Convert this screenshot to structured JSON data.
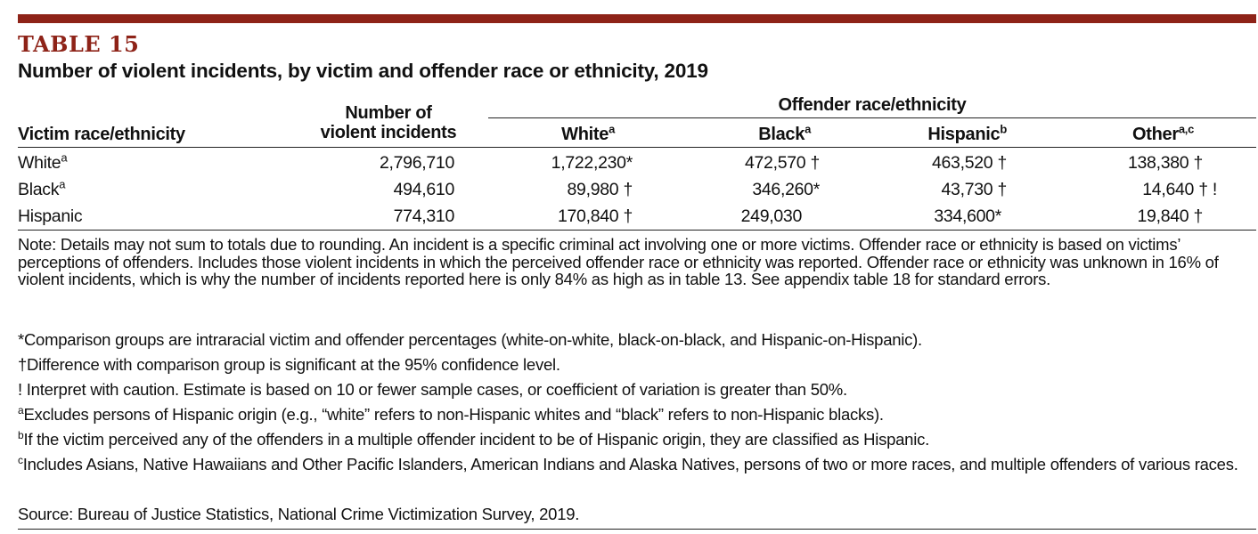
{
  "table_label": "TABLE 15",
  "title": "Number of violent incidents, by victim and offender race or ethnicity, 2019",
  "header": {
    "victim_col": "Victim race/ethnicity",
    "incidents_col_line1": "Number of",
    "incidents_col_line2": "violent incidents",
    "offender_group": "Offender race/ethnicity",
    "white": "White",
    "white_sup": "a",
    "black": "Black",
    "black_sup": "a",
    "hispanic": "Hispanic",
    "hispanic_sup": "b",
    "other": "Other",
    "other_sup": "a,c"
  },
  "rows": [
    {
      "label": "White",
      "label_sup": "a",
      "incidents": "2,796,710",
      "white": "1,722,230*",
      "black": "472,570 †",
      "hispanic": "463,520 †",
      "other": "138,380 †"
    },
    {
      "label": "Black",
      "label_sup": "a",
      "incidents": "494,610",
      "white": "89,980 †",
      "black": "346,260*",
      "hispanic": "43,730 †",
      "other": "14,640 † !"
    },
    {
      "label": "Hispanic",
      "label_sup": "",
      "incidents": "774,310",
      "white": "170,840 †",
      "black": "249,030",
      "hispanic": "334,600*",
      "other": "19,840 †"
    }
  ],
  "notes": {
    "main": "Note: Details may not sum to totals due to rounding. An incident is a specific criminal act involving one or more victims. Offender race or ethnicity is based on victims’ perceptions of offenders. Includes those violent incidents in which the perceived offender race or ethnicity was reported. Offender race or ethnicity was unknown in 16% of violent incidents, which is why the number of incidents reported here is only 84% as high as in table 13. See appendix table 18 for standard errors.",
    "asterisk": "*Comparison groups are intraracial victim and offender percentages (white-on-white, black-on-black, and Hispanic-on-Hispanic).",
    "dagger": "†Difference with comparison group is significant at the 95% confidence level.",
    "caution": "! Interpret with caution. Estimate is based on 10 or fewer sample cases, or coefficient of variation is greater than 50%.",
    "a_sup": "a",
    "a": "Excludes persons of Hispanic origin (e.g., “white” refers to non-Hispanic whites and “black” refers to non-Hispanic blacks).",
    "b_sup": "b",
    "b": "If the victim perceived any of the offenders in a multiple offender incident to be of Hispanic origin, they are classified as Hispanic.",
    "c_sup": "c",
    "c": "Includes Asians, Native Hawaiians and Other Pacific Islanders, American Indians and Alaska Natives, persons of two or more races, and multiple offenders of various races.",
    "source": "Source: Bureau of Justice Statistics, National Crime Victimization Survey, 2019."
  }
}
